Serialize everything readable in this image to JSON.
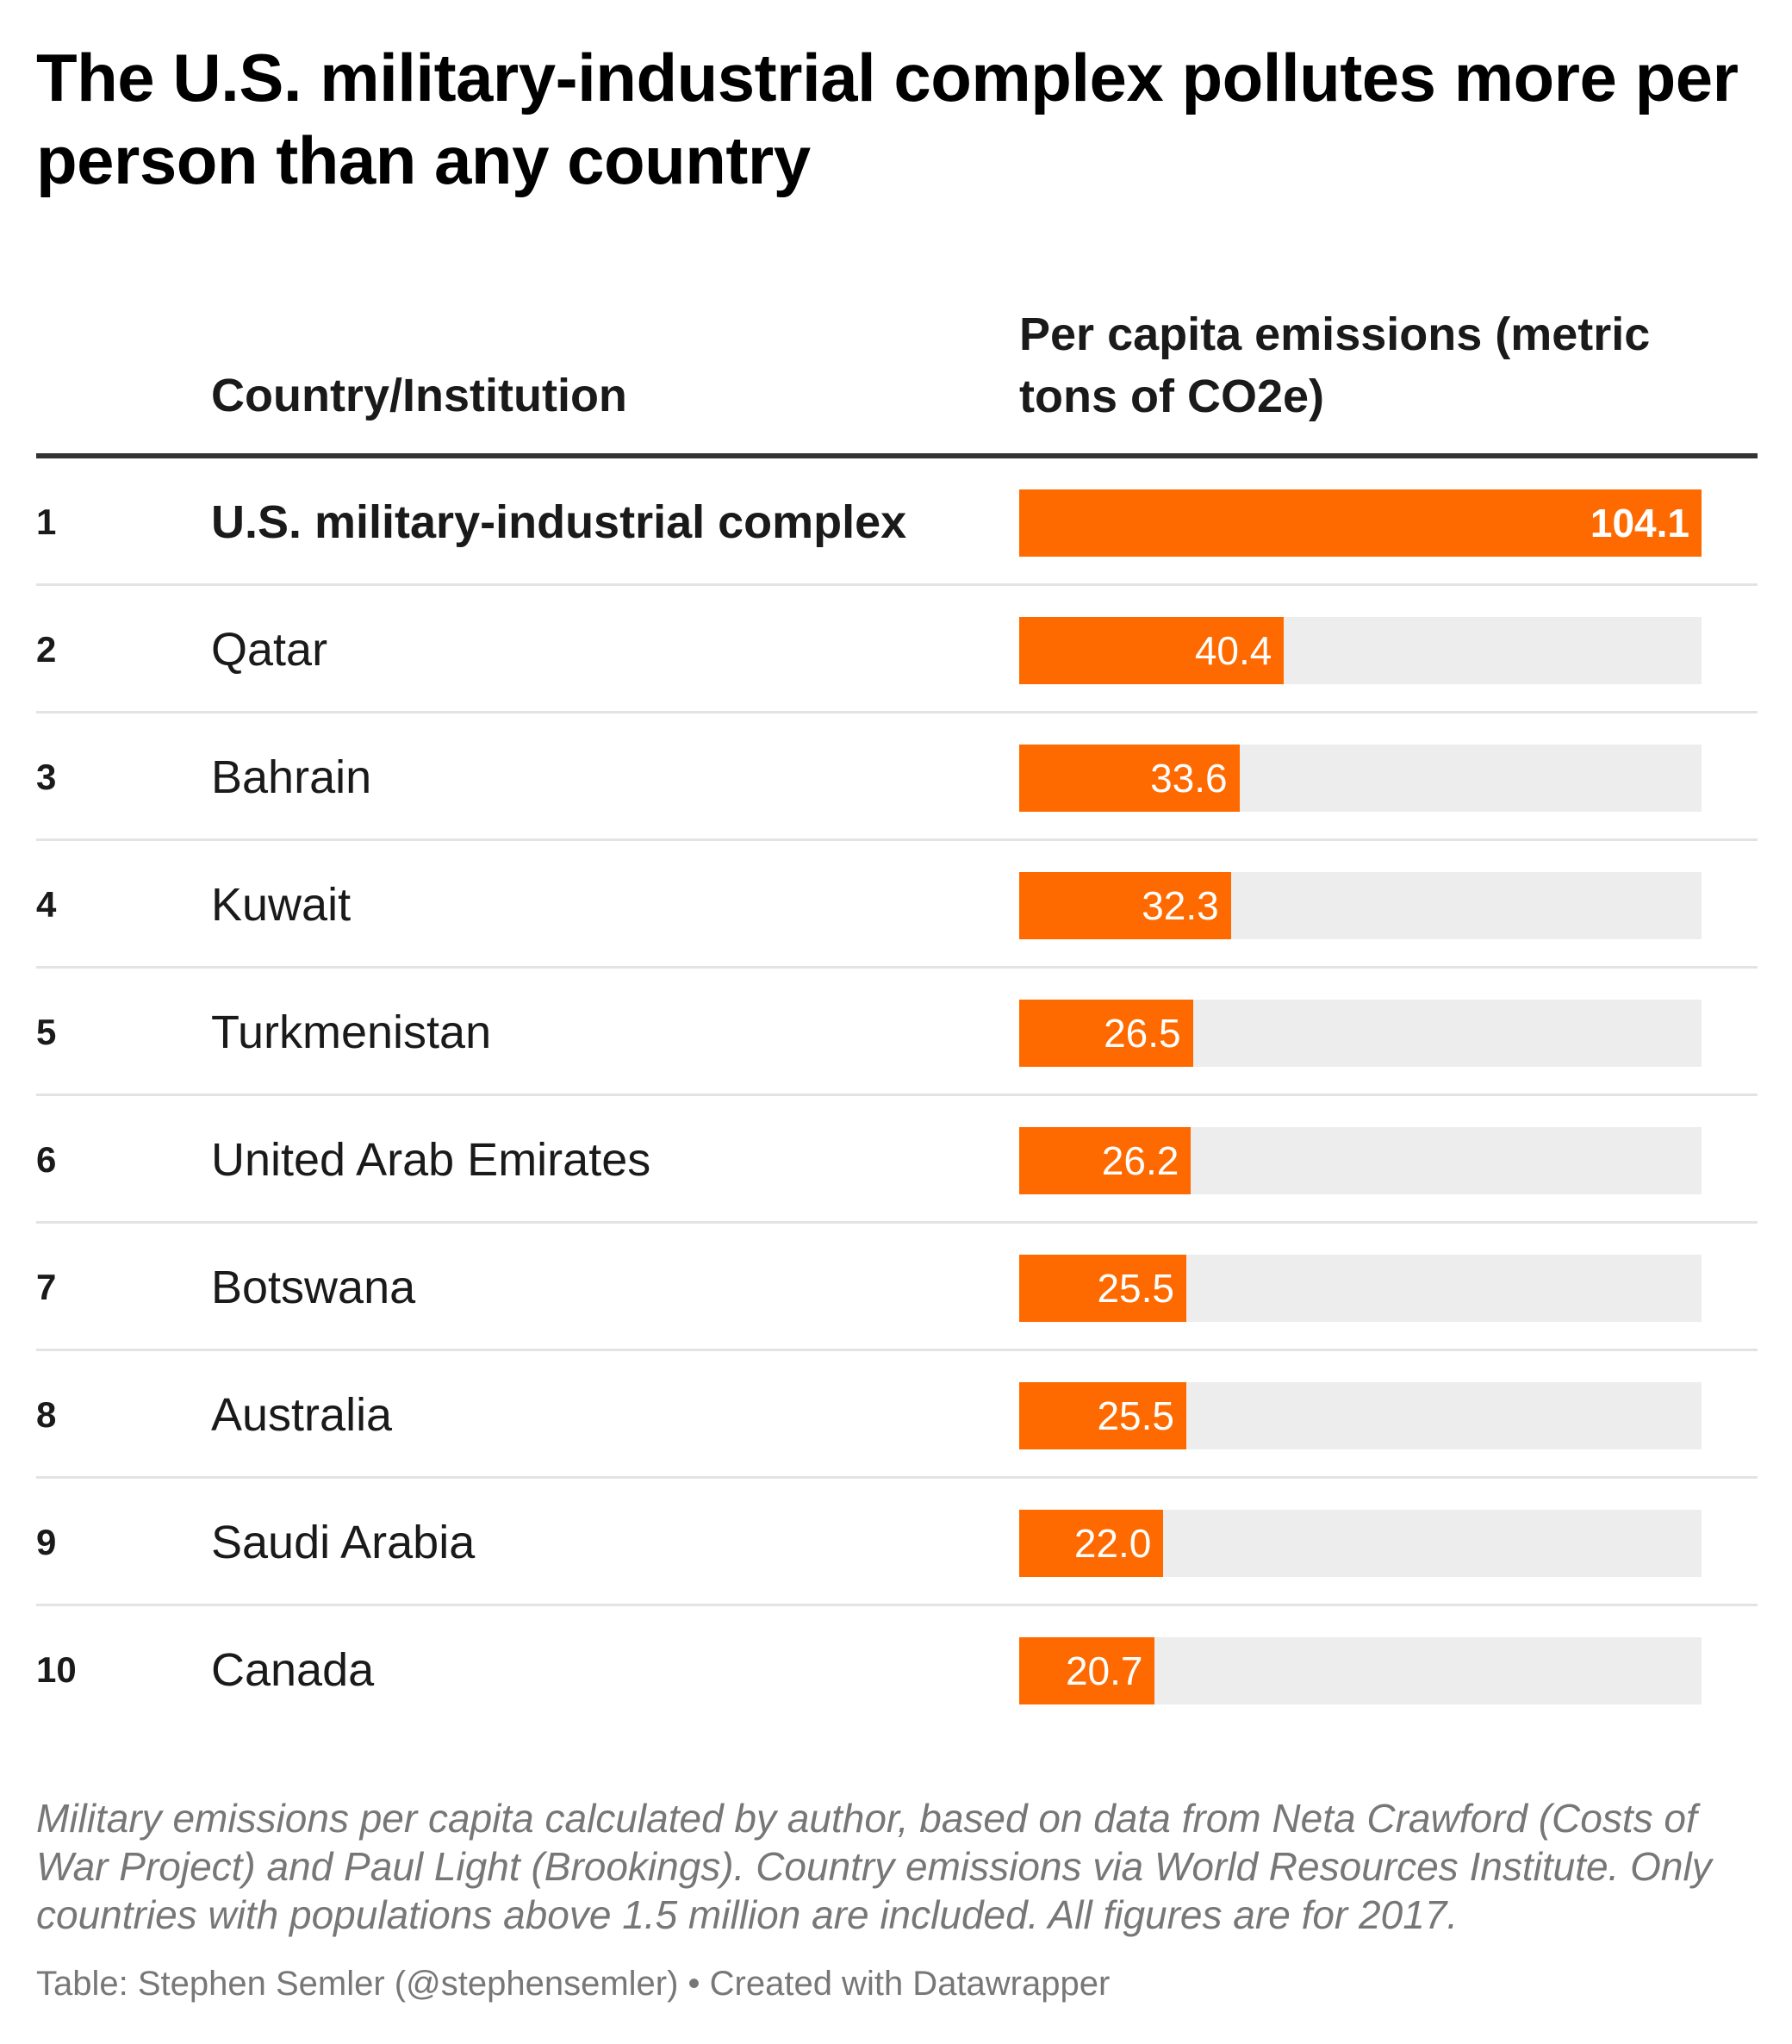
{
  "title": "The U.S. military-industrial complex pollutes more per person than any country",
  "header": {
    "country_col": "Country/Institution",
    "value_col": "Per capita emissions (metric tons of CO2e)"
  },
  "chart_data": {
    "type": "table",
    "columns": [
      "",
      "Country/Institution",
      "Per capita emissions (metric tons of CO2e)"
    ],
    "max_value": 104.1,
    "rows": [
      {
        "rank": "1",
        "name": "U.S. military-industrial complex",
        "value": 104.1,
        "label": "104.1",
        "highlight": true
      },
      {
        "rank": "2",
        "name": "Qatar",
        "value": 40.4,
        "label": "40.4"
      },
      {
        "rank": "3",
        "name": "Bahrain",
        "value": 33.6,
        "label": "33.6"
      },
      {
        "rank": "4",
        "name": "Kuwait",
        "value": 32.3,
        "label": "32.3"
      },
      {
        "rank": "5",
        "name": "Turkmenistan",
        "value": 26.5,
        "label": "26.5"
      },
      {
        "rank": "6",
        "name": "United Arab Emirates",
        "value": 26.2,
        "label": "26.2"
      },
      {
        "rank": "7",
        "name": "Botswana",
        "value": 25.5,
        "label": "25.5"
      },
      {
        "rank": "8",
        "name": "Australia",
        "value": 25.5,
        "label": "25.5"
      },
      {
        "rank": "9",
        "name": "Saudi Arabia",
        "value": 22.0,
        "label": "22.0"
      },
      {
        "rank": "10",
        "name": "Canada",
        "value": 20.7,
        "label": "20.7"
      }
    ]
  },
  "colors": {
    "bar": "#ff6a00",
    "track": "#ededed"
  },
  "notes": "Military emissions per capita calculated by author, based on data from Neta Crawford (Costs of War Project) and Paul Light (Brookings). Country emissions via World Resources Institute. Only countries with populations above 1.5 million are included. All figures are for 2017.",
  "credit": "Table: Stephen Semler (@stephensemler) • Created with Datawrapper"
}
